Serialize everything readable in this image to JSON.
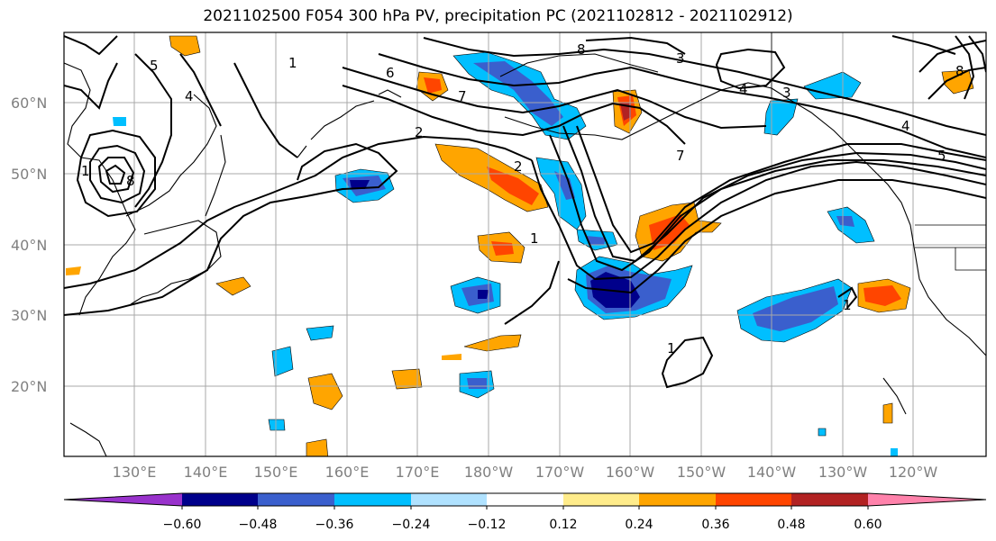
{
  "title": "2021102500 F054 300 hPa PV, precipitation PC (2021102812 - 2021102912)",
  "lat_labels": [
    "60°N",
    "50°N",
    "40°N",
    "30°N",
    "20°N"
  ],
  "lon_labels": [
    "130°E",
    "140°E",
    "150°E",
    "160°E",
    "170°E",
    "180°W",
    "170°W",
    "160°W",
    "150°W",
    "140°W",
    "130°W",
    "120°W"
  ],
  "colorbar": {
    "ticks": [
      "−0.60",
      "−0.48",
      "−0.36",
      "−0.24",
      "−0.12",
      "0.12",
      "0.24",
      "0.36",
      "0.48",
      "0.60"
    ],
    "colors": [
      "#9932cc",
      "#00008b",
      "#3a5fcd",
      "#00bfff",
      "#b0e2ff",
      "#ffffff",
      "#ffec8b",
      "#ffa500",
      "#ff4500",
      "#b22222",
      "#ff82ab"
    ]
  },
  "contour_labels": [
    "1",
    "2",
    "3",
    "4",
    "5",
    "6",
    "7",
    "8"
  ],
  "colors": {
    "contour": "#000000",
    "grid": "#a9a9a9",
    "coast": "#000000"
  }
}
